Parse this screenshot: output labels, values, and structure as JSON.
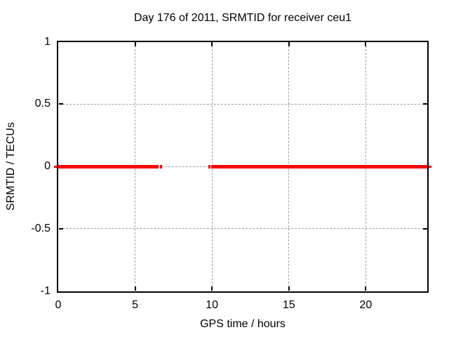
{
  "chart_data": {
    "type": "line",
    "title": "Day 176 of 2011, SRMTID for receiver ceu1",
    "xlabel": "GPS time / hours",
    "ylabel": "SRMTID / TECUs",
    "xlim": [
      0,
      24
    ],
    "ylim": [
      -1,
      1
    ],
    "xticks": [
      0,
      5,
      10,
      15,
      20
    ],
    "xtick_labels": [
      "0",
      "5",
      "10",
      "15",
      "20"
    ],
    "yticks": [
      1,
      0.5,
      0,
      -0.5,
      -1
    ],
    "ytick_labels": [
      "1",
      "0.5",
      "0",
      "-0.5",
      "-1"
    ],
    "grid": "dashed",
    "legend_position": "none",
    "series": [
      {
        "name": "SRMTID",
        "color": "#ff0000",
        "style": "thick horizontal line at y=0",
        "y_value": 0,
        "segments_x_hours": [
          [
            0,
            6.52
          ],
          [
            6.6,
            6.75
          ],
          [
            9.75,
            9.9
          ],
          [
            9.95,
            24
          ]
        ]
      }
    ],
    "colors": {
      "background": "#ffffff",
      "border": "#000000",
      "grid": "#a0a0a0",
      "text": "#000000"
    }
  }
}
